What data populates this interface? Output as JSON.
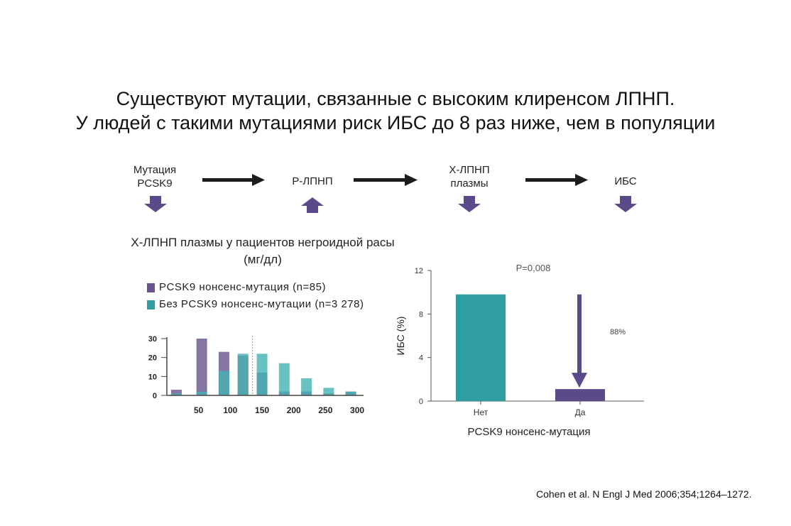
{
  "colors": {
    "purple": "#6a5590",
    "teal": "#2f9ea0",
    "teal_light": "#44b3b3",
    "arrow_dark": "#1c1c1c",
    "arrow_purple": "#5b4a8a"
  },
  "title": {
    "line1": "Существуют мутации, связанные с высоким клиренсом ЛПНП.",
    "line2": "У людей с такими мутациями риск ИБС до 8 раз ниже, чем в популяции"
  },
  "flow": {
    "steps": [
      {
        "label_line1": "Мутация",
        "label_line2": "PCSK9",
        "direction": "down"
      },
      {
        "label_line1": "Р-ЛПНП",
        "label_line2": "",
        "direction": "up"
      },
      {
        "label_line1": "Х-ЛПНП",
        "label_line2": "плазмы",
        "direction": "down"
      },
      {
        "label_line1": "ИБС",
        "label_line2": "",
        "direction": "down"
      }
    ]
  },
  "citation": "Cohen et al. N Engl J Med 2006;354;1264–1272.",
  "chart_data": [
    {
      "type": "bar",
      "title_line1": "Х-ЛПНП плазмы у пациентов негроидной расы",
      "title_line2": "(мг/дл)",
      "legend": [
        {
          "label": "PCSK9 нонсенс-мутация (n=85)",
          "color": "#6a5590"
        },
        {
          "label": "Без PCSK9 нонсенс-мутации (n=3 278)",
          "color": "#2f9ea0"
        }
      ],
      "x_ticks": [
        "50",
        "100",
        "150",
        "200",
        "250",
        "300"
      ],
      "y_ticks": [
        "0",
        "10",
        "20",
        "30"
      ],
      "xlim": [
        0,
        310
      ],
      "ylim": [
        0,
        30
      ],
      "bin_centers": [
        15,
        55,
        90,
        120,
        150,
        185,
        220,
        255,
        290
      ],
      "series": [
        {
          "values": [
            3,
            30,
            23,
            21,
            12,
            2,
            2,
            1,
            2
          ]
        },
        {
          "values": [
            1,
            2,
            13,
            22,
            22,
            17,
            9,
            4,
            2
          ]
        }
      ],
      "reference_x": 135
    },
    {
      "type": "bar",
      "categories": [
        "Нет",
        "Да"
      ],
      "values": [
        9.8,
        1.1
      ],
      "ylabel": "ИБС (%)",
      "xlabel": "PCSK9 нонсенс-мутация",
      "y_ticks": [
        "0",
        "4",
        "8",
        "12"
      ],
      "ylim": [
        0,
        12
      ],
      "annotation_p": "P=0,008",
      "annotation_reduction": "88%"
    }
  ]
}
